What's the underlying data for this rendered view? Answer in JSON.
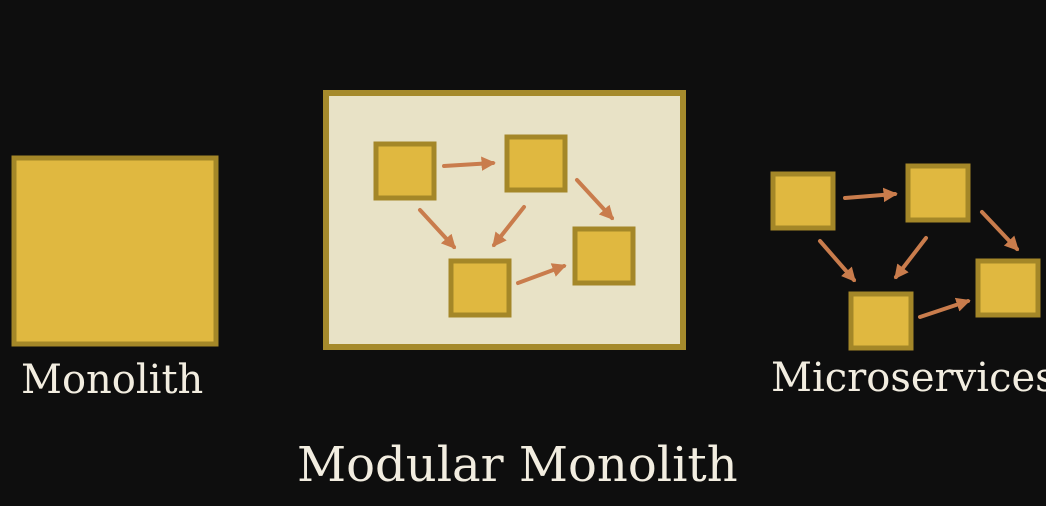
{
  "labels": {
    "monolith": "Monolith",
    "modular_monolith": "Modular Monolith",
    "microservices": "Microservices"
  },
  "colors": {
    "background": "#0e0e0e",
    "module_fill": "#e0b840",
    "module_border": "#a48728",
    "container_fill": "#e8e2c6",
    "container_border": "#a58a2c",
    "arrow": "#c97c4c",
    "text": "#f2ede0"
  }
}
